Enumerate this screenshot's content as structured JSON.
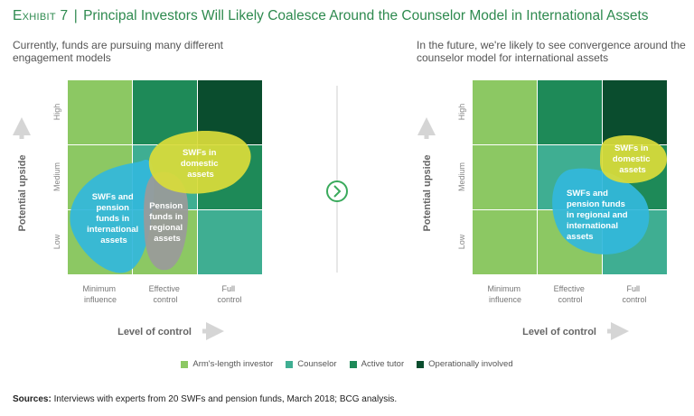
{
  "title": {
    "exhibit": "Exhibit 7",
    "text": "Principal Investors Will Likely Coalesce Around the Counselor Model in International Assets"
  },
  "left_panel": {
    "subtitle": "Currently, funds are pursuing many different engagement models",
    "blobs": {
      "intl": [
        "SWFs and",
        "pension",
        "funds in",
        "international",
        "assets"
      ],
      "regional": [
        "Pension",
        "funds in",
        "regional",
        "assets"
      ],
      "domestic": [
        "SWFs in",
        "domestic",
        "assets"
      ]
    }
  },
  "right_panel": {
    "subtitle": "In the future, we're likely to see convergence around the counselor model for international assets",
    "blobs": {
      "domestic": [
        "SWFs in",
        "domestic",
        "assets"
      ],
      "pension": [
        "SWFs and",
        "pension funds",
        "in regional and",
        "international",
        "assets"
      ]
    }
  },
  "axes": {
    "y_label": "Potential upside",
    "y_ticks": [
      "High",
      "Medium",
      "Low"
    ],
    "x_label": "Level of control",
    "x_ticks": [
      [
        "Minimum",
        "influence"
      ],
      [
        "Effective",
        "control"
      ],
      [
        "Full",
        "control"
      ]
    ]
  },
  "legend": [
    {
      "label": "Arm's-length investor",
      "color": "#8cc863"
    },
    {
      "label": "Counselor",
      "color": "#3fae92"
    },
    {
      "label": "Active tutor",
      "color": "#1e8a58"
    },
    {
      "label": "Operationally involved",
      "color": "#0a4d2e"
    }
  ],
  "colors": {
    "arms_length": "#8cc863",
    "counselor": "#3fae92",
    "active_tutor": "#1e8a58",
    "operational": "#0a4d2e",
    "blob_blue": "#33b8dc",
    "blob_gray": "#9a9a9a",
    "blob_yellow": "#d9dc3a"
  },
  "sources": {
    "label": "Sources:",
    "text": "Interviews with experts from 20 SWFs and pension funds, March 2018; BCG analysis."
  }
}
